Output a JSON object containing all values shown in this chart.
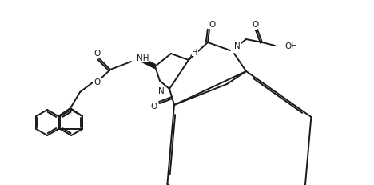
{
  "line_color": "#1a1a1a",
  "bg_color": "#ffffff",
  "lw": 1.4,
  "figsize": [
    4.68,
    2.32
  ],
  "dpi": 100,
  "xlim": [
    0,
    468
  ],
  "ylim": [
    0,
    232
  ]
}
